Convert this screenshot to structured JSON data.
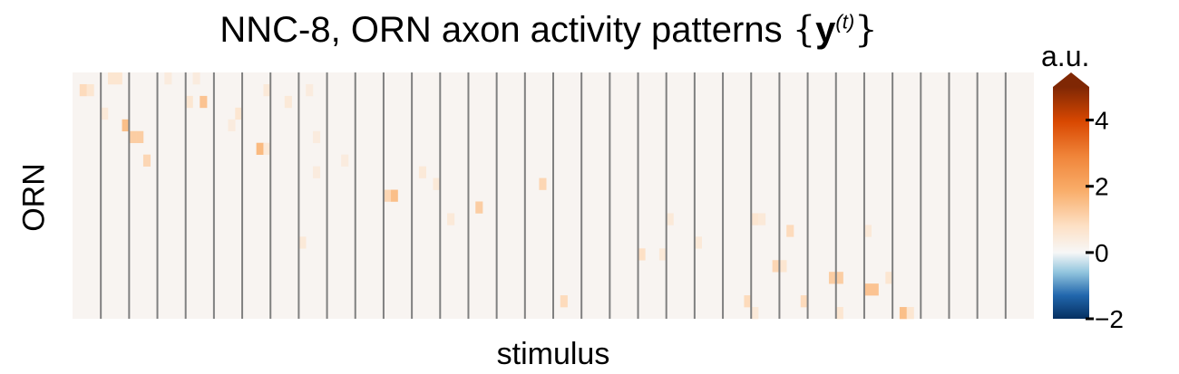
{
  "chart_data": {
    "type": "heatmap",
    "title_prefix": "NNC-8, ORN axon activity patterns ",
    "title_brace_open": "{",
    "title_bold": "y",
    "title_sup": "(t)",
    "title_brace_close": "}",
    "xlabel": "stimulus",
    "ylabel": "ORN",
    "colorbar": {
      "label": "a.u.",
      "range": [
        -2,
        5
      ],
      "ticks": [
        -2,
        0,
        2,
        4
      ],
      "tick_labels": [
        "−2",
        "0",
        "2",
        "4"
      ],
      "extend": "max",
      "colors": {
        "min": "#053061",
        "mid_neg": "#4393c3",
        "zero": "#f7f7f7",
        "low_pos": "#fde0c5",
        "mid_pos": "#f0853a",
        "high": "#d94801",
        "max": "#7f2704"
      }
    },
    "stimuli_groups": 34,
    "columns_per_group": 4,
    "orn_count": 21,
    "background_value": 0.1,
    "group_separator_color": "#808080",
    "hotspots": [
      {
        "row": 0,
        "col": 5,
        "v": 0.6
      },
      {
        "row": 0,
        "col": 6,
        "v": 0.6
      },
      {
        "row": 0,
        "col": 13,
        "v": 0.4
      },
      {
        "row": 0,
        "col": 17,
        "v": 0.4
      },
      {
        "row": 1,
        "col": 1,
        "v": 0.9
      },
      {
        "row": 1,
        "col": 2,
        "v": 0.6
      },
      {
        "row": 1,
        "col": 27,
        "v": 0.5
      },
      {
        "row": 1,
        "col": 33,
        "v": 0.4
      },
      {
        "row": 2,
        "col": 18,
        "v": 1.4
      },
      {
        "row": 2,
        "col": 16,
        "v": 0.6
      },
      {
        "row": 2,
        "col": 30,
        "v": 0.5
      },
      {
        "row": 3,
        "col": 23,
        "v": 0.6
      },
      {
        "row": 3,
        "col": 4,
        "v": 0.5
      },
      {
        "row": 4,
        "col": 7,
        "v": 1.5
      },
      {
        "row": 4,
        "col": 22,
        "v": 0.4
      },
      {
        "row": 5,
        "col": 8,
        "v": 1.2
      },
      {
        "row": 5,
        "col": 9,
        "v": 1.2
      },
      {
        "row": 5,
        "col": 34,
        "v": 0.4
      },
      {
        "row": 6,
        "col": 26,
        "v": 1.6
      },
      {
        "row": 6,
        "col": 27,
        "v": 0.5
      },
      {
        "row": 7,
        "col": 10,
        "v": 1.0
      },
      {
        "row": 7,
        "col": 38,
        "v": 0.4
      },
      {
        "row": 8,
        "col": 49,
        "v": 0.5
      },
      {
        "row": 8,
        "col": 34,
        "v": 0.4
      },
      {
        "row": 9,
        "col": 66,
        "v": 1.0
      },
      {
        "row": 9,
        "col": 51,
        "v": 0.5
      },
      {
        "row": 10,
        "col": 45,
        "v": 1.5
      },
      {
        "row": 10,
        "col": 44,
        "v": 1.0
      },
      {
        "row": 11,
        "col": 57,
        "v": 1.2
      },
      {
        "row": 12,
        "col": 53,
        "v": 0.5
      },
      {
        "row": 12,
        "col": 84,
        "v": 0.5
      },
      {
        "row": 12,
        "col": 96,
        "v": 0.6
      },
      {
        "row": 12,
        "col": 97,
        "v": 0.5
      },
      {
        "row": 13,
        "col": 101,
        "v": 0.9
      },
      {
        "row": 13,
        "col": 112,
        "v": 0.5
      },
      {
        "row": 14,
        "col": 32,
        "v": 0.5
      },
      {
        "row": 14,
        "col": 88,
        "v": 0.5
      },
      {
        "row": 15,
        "col": 80,
        "v": 0.8
      },
      {
        "row": 15,
        "col": 83,
        "v": 0.5
      },
      {
        "row": 16,
        "col": 99,
        "v": 1.0
      },
      {
        "row": 16,
        "col": 100,
        "v": 0.6
      },
      {
        "row": 17,
        "col": 107,
        "v": 1.2
      },
      {
        "row": 17,
        "col": 108,
        "v": 1.2
      },
      {
        "row": 17,
        "col": 115,
        "v": 0.6
      },
      {
        "row": 18,
        "col": 112,
        "v": 1.4
      },
      {
        "row": 18,
        "col": 113,
        "v": 1.4
      },
      {
        "row": 19,
        "col": 69,
        "v": 0.9
      },
      {
        "row": 19,
        "col": 95,
        "v": 0.9
      },
      {
        "row": 19,
        "col": 103,
        "v": 0.9
      },
      {
        "row": 20,
        "col": 117,
        "v": 1.5
      },
      {
        "row": 20,
        "col": 118,
        "v": 0.6
      },
      {
        "row": 20,
        "col": 108,
        "v": 0.6
      },
      {
        "row": 20,
        "col": 96,
        "v": 0.5
      }
    ]
  }
}
